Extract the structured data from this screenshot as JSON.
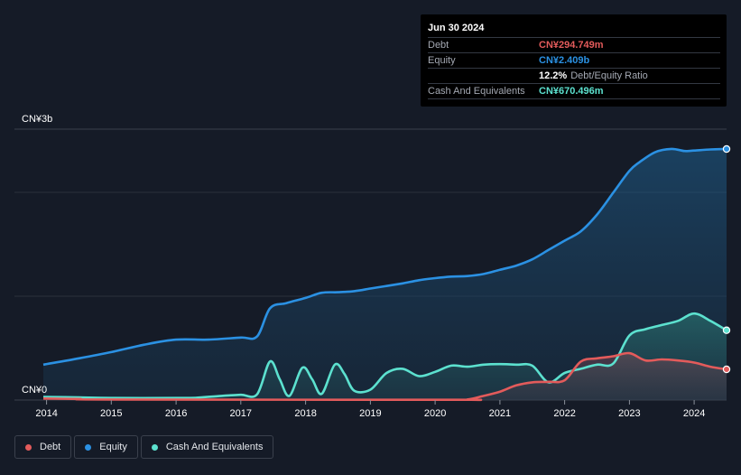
{
  "tooltip": {
    "date": "Jun 30 2024",
    "rows": [
      {
        "label": "Debt",
        "value": "CN¥294.749m",
        "color": "#e35b5b"
      },
      {
        "label": "Equity",
        "value": "CN¥2.409b",
        "color": "#2b91e3"
      }
    ],
    "ratio_value": "12.2%",
    "ratio_label": "Debt/Equity Ratio",
    "cash_label": "Cash And Equivalents",
    "cash_value": "CN¥670.496m",
    "cash_color": "#5ce1cf"
  },
  "legend": [
    {
      "label": "Debt",
      "color": "#e35b5b"
    },
    {
      "label": "Equity",
      "color": "#2b91e3"
    },
    {
      "label": "Cash And Equivalents",
      "color": "#5ce1cf"
    }
  ],
  "chart_data": {
    "type": "area",
    "title": "",
    "xlabel": "",
    "ylabel": "",
    "y_top_label": "CN¥3b",
    "y_bottom_label": "CN¥0",
    "ylim": [
      0,
      2600
    ],
    "xlim": [
      2013.95,
      2024.5
    ],
    "grid": true,
    "x_ticks": [
      "2014",
      "2015",
      "2016",
      "2017",
      "2018",
      "2019",
      "2020",
      "2021",
      "2022",
      "2023",
      "2024"
    ],
    "series": [
      {
        "name": "Equity",
        "color": "#2b91e3",
        "points": [
          [
            2013.95,
            340
          ],
          [
            2014.5,
            400
          ],
          [
            2015.0,
            460
          ],
          [
            2015.5,
            530
          ],
          [
            2016.0,
            580
          ],
          [
            2016.5,
            580
          ],
          [
            2017.0,
            600
          ],
          [
            2017.25,
            610
          ],
          [
            2017.45,
            880
          ],
          [
            2017.7,
            930
          ],
          [
            2018.0,
            980
          ],
          [
            2018.25,
            1030
          ],
          [
            2018.5,
            1035
          ],
          [
            2018.75,
            1045
          ],
          [
            2019.0,
            1070
          ],
          [
            2019.25,
            1095
          ],
          [
            2019.5,
            1120
          ],
          [
            2019.75,
            1150
          ],
          [
            2020.0,
            1170
          ],
          [
            2020.25,
            1185
          ],
          [
            2020.5,
            1190
          ],
          [
            2020.75,
            1210
          ],
          [
            2021.0,
            1250
          ],
          [
            2021.25,
            1290
          ],
          [
            2021.5,
            1350
          ],
          [
            2021.75,
            1440
          ],
          [
            2022.0,
            1530
          ],
          [
            2022.25,
            1620
          ],
          [
            2022.5,
            1780
          ],
          [
            2022.75,
            1990
          ],
          [
            2023.0,
            2200
          ],
          [
            2023.15,
            2280
          ],
          [
            2023.4,
            2380
          ],
          [
            2023.65,
            2410
          ],
          [
            2023.85,
            2390
          ],
          [
            2024.0,
            2395
          ],
          [
            2024.25,
            2405
          ],
          [
            2024.5,
            2409
          ]
        ]
      },
      {
        "name": "Cash And Equivalents",
        "color": "#5ce1cf",
        "points": [
          [
            2013.95,
            30
          ],
          [
            2014.5,
            25
          ],
          [
            2015.0,
            20
          ],
          [
            2016.0,
            20
          ],
          [
            2016.3,
            22
          ],
          [
            2016.7,
            40
          ],
          [
            2017.0,
            50
          ],
          [
            2017.25,
            55
          ],
          [
            2017.45,
            370
          ],
          [
            2017.6,
            200
          ],
          [
            2017.75,
            40
          ],
          [
            2017.95,
            310
          ],
          [
            2018.1,
            200
          ],
          [
            2018.25,
            60
          ],
          [
            2018.45,
            340
          ],
          [
            2018.6,
            250
          ],
          [
            2018.75,
            90
          ],
          [
            2019.0,
            100
          ],
          [
            2019.25,
            260
          ],
          [
            2019.5,
            300
          ],
          [
            2019.75,
            230
          ],
          [
            2020.0,
            270
          ],
          [
            2020.25,
            330
          ],
          [
            2020.5,
            320
          ],
          [
            2020.75,
            340
          ],
          [
            2021.0,
            345
          ],
          [
            2021.25,
            340
          ],
          [
            2021.5,
            330
          ],
          [
            2021.75,
            170
          ],
          [
            2022.0,
            260
          ],
          [
            2022.25,
            300
          ],
          [
            2022.5,
            340
          ],
          [
            2022.75,
            350
          ],
          [
            2023.0,
            620
          ],
          [
            2023.25,
            680
          ],
          [
            2023.5,
            720
          ],
          [
            2023.75,
            760
          ],
          [
            2024.0,
            830
          ],
          [
            2024.25,
            760
          ],
          [
            2024.5,
            670
          ]
        ]
      },
      {
        "name": "Debt",
        "color": "#e35b5b",
        "points": [
          [
            2013.95,
            15
          ],
          [
            2014.5,
            10
          ],
          [
            2015.0,
            5
          ],
          [
            2020.25,
            3
          ],
          [
            2020.5,
            5
          ],
          [
            2020.75,
            40
          ],
          [
            2021.0,
            80
          ],
          [
            2021.25,
            140
          ],
          [
            2021.5,
            170
          ],
          [
            2021.75,
            175
          ],
          [
            2022.0,
            190
          ],
          [
            2022.25,
            370
          ],
          [
            2022.5,
            400
          ],
          [
            2022.75,
            420
          ],
          [
            2023.0,
            450
          ],
          [
            2023.25,
            380
          ],
          [
            2023.5,
            390
          ],
          [
            2023.75,
            380
          ],
          [
            2024.0,
            360
          ],
          [
            2024.25,
            320
          ],
          [
            2024.5,
            295
          ]
        ]
      }
    ]
  }
}
